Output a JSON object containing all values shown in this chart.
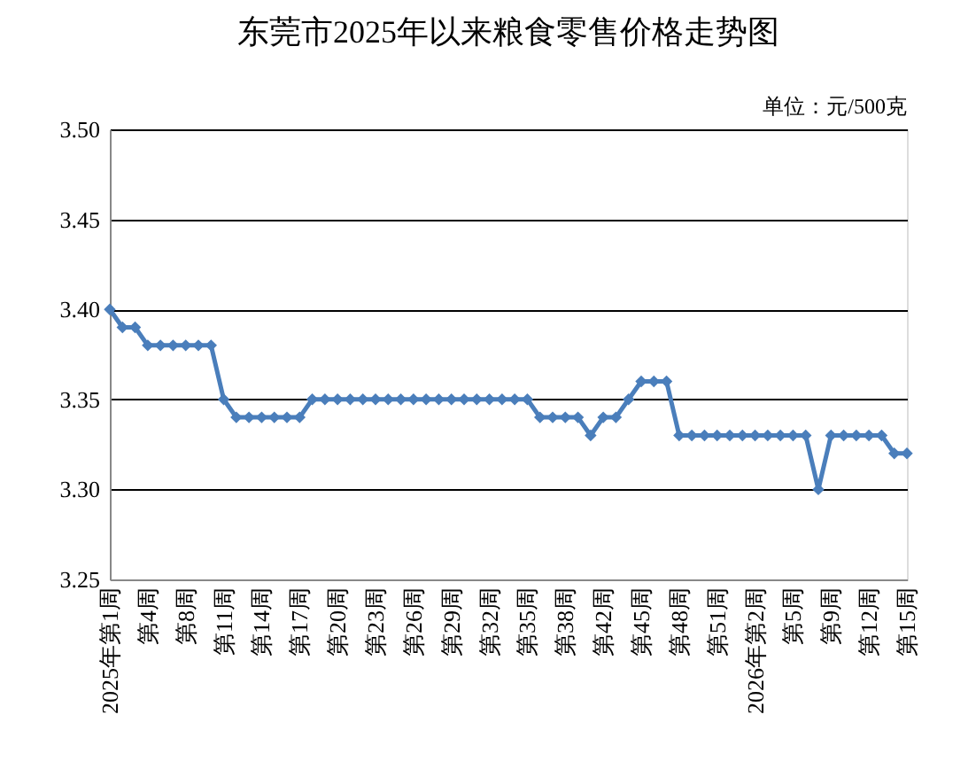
{
  "chart_data": {
    "type": "line",
    "title": "东莞市2025年以来粮食零售价格走势图",
    "annotations": [
      "单位：元/500克"
    ],
    "categories": [
      "2025年第1周",
      null,
      null,
      "第4周",
      null,
      null,
      "第8周",
      null,
      null,
      "第11周",
      null,
      null,
      "第14周",
      null,
      null,
      "第17周",
      null,
      null,
      "第20周",
      null,
      null,
      "第23周",
      null,
      null,
      "第26周",
      null,
      null,
      "第29周",
      null,
      null,
      "第32周",
      null,
      null,
      "第35周",
      null,
      null,
      "第38周",
      null,
      null,
      "第42周",
      null,
      null,
      "第45周",
      null,
      null,
      "第48周",
      null,
      null,
      "第51周",
      null,
      null,
      "2026年第2周",
      null,
      null,
      "第5周",
      null,
      null,
      "第9周",
      null,
      null,
      "第12周",
      null,
      null,
      "第15周"
    ],
    "series": [
      {
        "color": "#4a7ebb",
        "values": [
          3.4,
          3.39,
          3.39,
          3.38,
          3.38,
          3.38,
          3.38,
          3.38,
          3.38,
          3.35,
          3.34,
          3.34,
          3.34,
          3.34,
          3.34,
          3.34,
          3.35,
          3.35,
          3.35,
          3.35,
          3.35,
          3.35,
          3.35,
          3.35,
          3.35,
          3.35,
          3.35,
          3.35,
          3.35,
          3.35,
          3.35,
          3.35,
          3.35,
          3.35,
          3.34,
          3.34,
          3.34,
          3.34,
          3.33,
          3.34,
          3.34,
          3.35,
          3.36,
          3.36,
          3.36,
          3.33,
          3.33,
          3.33,
          3.33,
          3.33,
          3.33,
          3.33,
          3.33,
          3.33,
          3.33,
          3.33,
          3.3,
          3.33,
          3.33,
          3.33,
          3.33,
          3.33,
          3.32,
          3.32
        ]
      }
    ],
    "ylim": [
      3.25,
      3.5
    ],
    "yticks": [
      {
        "value": 3.25,
        "label": "3.25"
      },
      {
        "value": 3.3,
        "label": "3.30"
      },
      {
        "value": 3.35,
        "label": "3.35"
      },
      {
        "value": 3.4,
        "label": "3.40"
      },
      {
        "value": 3.45,
        "label": "3.45"
      },
      {
        "value": 3.5,
        "label": "3.50"
      }
    ],
    "grid": "y",
    "marker": "diamond",
    "line_style": "solid"
  }
}
